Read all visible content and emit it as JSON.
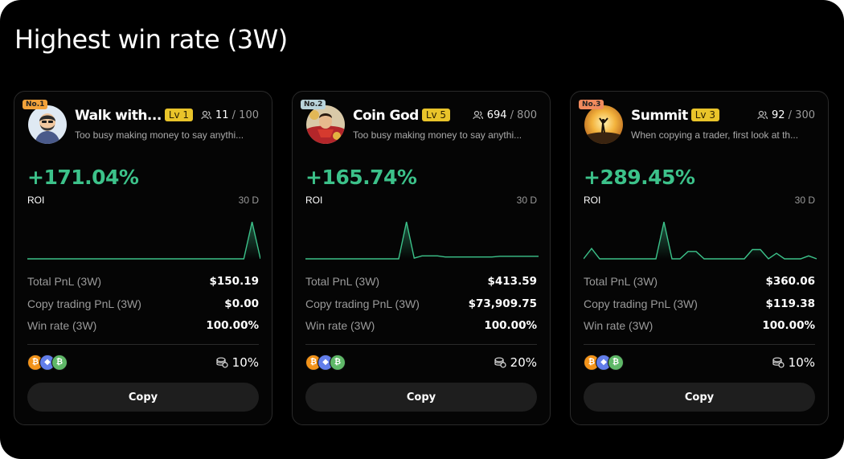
{
  "section": {
    "title": "Highest win rate (3W)"
  },
  "colors": {
    "positive": "#3cc28a",
    "badge": "#e9c42a",
    "background": "#000000"
  },
  "labels": {
    "roi": "ROI",
    "total_pnl": "Total PnL (3W)",
    "copy_pnl": "Copy trading PnL (3W)",
    "win_rate": "Win rate (3W)",
    "copy_button": "Copy"
  },
  "traders": [
    {
      "rank": "No.1",
      "name": "Walk with...",
      "level": "Lv 1",
      "followers": "11",
      "followers_max": "100",
      "bio": "Too busy making money to say anythi...",
      "roi": "+171.04%",
      "period": "30 D",
      "total_pnl": "$150.19",
      "copy_pnl": "$0.00",
      "win_rate": "100.00%",
      "profit_share": "10%",
      "coins": [
        "bitcoin-icon",
        "ethereum-icon",
        "bitcoin-cash-icon"
      ],
      "sparkline": [
        0,
        0,
        0,
        0,
        0,
        0,
        0,
        0,
        0,
        0,
        0,
        0,
        0,
        0,
        0,
        0,
        0,
        0,
        0,
        0,
        0,
        0,
        0,
        0,
        0,
        0,
        0,
        1,
        0
      ]
    },
    {
      "rank": "No.2",
      "name": "Coin God",
      "level": "Lv 5",
      "followers": "694",
      "followers_max": "800",
      "bio": "Too busy making money to say anythi...",
      "roi": "+165.74%",
      "period": "30 D",
      "total_pnl": "$413.59",
      "copy_pnl": "$73,909.75",
      "win_rate": "100.00%",
      "profit_share": "20%",
      "coins": [
        "bitcoin-icon",
        "ethereum-icon",
        "bitcoin-cash-icon"
      ],
      "sparkline": [
        0,
        0,
        0,
        0,
        0,
        0,
        0,
        0,
        0,
        0,
        0,
        0,
        0,
        1,
        0.02,
        0.08,
        0.08,
        0.08,
        0.05,
        0.05,
        0.05,
        0.05,
        0.05,
        0.05,
        0.05,
        0.07,
        0.07,
        0.07,
        0.07,
        0.07,
        0.07
      ]
    },
    {
      "rank": "No.3",
      "name": "Summit",
      "level": "Lv 3",
      "followers": "92",
      "followers_max": "300",
      "bio": "When copying a trader, first look at th...",
      "roi": "+289.45%",
      "period": "30 D",
      "total_pnl": "$360.06",
      "copy_pnl": "$119.38",
      "win_rate": "100.00%",
      "profit_share": "10%",
      "coins": [
        "bitcoin-icon",
        "ethereum-icon",
        "bitcoin-cash-icon"
      ],
      "sparkline": [
        0,
        0.28,
        0,
        0,
        0,
        0,
        0,
        0,
        0,
        0,
        1,
        0,
        0,
        0.2,
        0.2,
        0,
        0,
        0,
        0,
        0,
        0,
        0.25,
        0.25,
        0,
        0.15,
        0,
        0,
        0,
        0.08,
        0
      ]
    }
  ]
}
